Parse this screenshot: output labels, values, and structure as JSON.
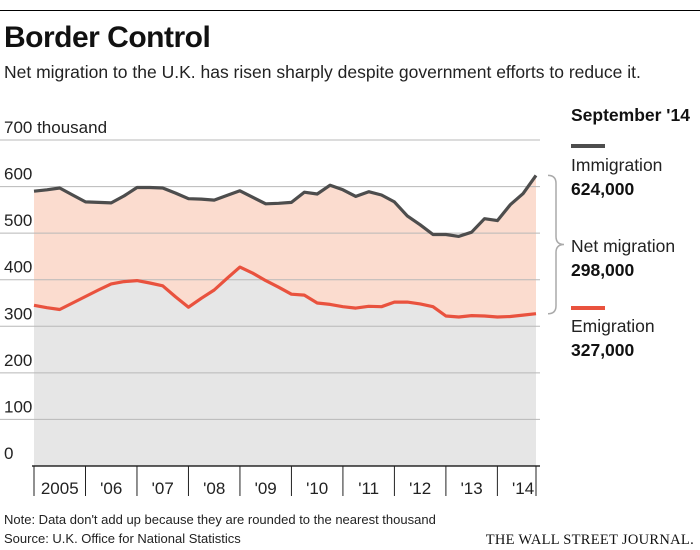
{
  "header": {
    "title": "Border Control",
    "subtitle": "Net migration to the U.K. has risen sharply despite government efforts to reduce it."
  },
  "legend": {
    "period": "September '14",
    "immigration_label": "Immigration",
    "immigration_value": "624,000",
    "net_label": "Net migration",
    "net_value": "298,000",
    "emigration_label": "Emigration",
    "emigration_value": "327,000"
  },
  "footer": {
    "note": "Note: Data don't add up because they are rounded to the nearest thousand",
    "source": "Source: U.K. Office for National Statistics",
    "publisher": "THE WALL STREET JOURNAL."
  },
  "colors": {
    "immigration": "#4d4d4d",
    "emigration": "#e9523e",
    "net_fill": "#fbdccf",
    "base_fill": "#e6e6e6",
    "grid": "#b8b8b8"
  },
  "chart_data": {
    "type": "line",
    "ylabel": "700 thousand",
    "ylim": [
      0,
      700
    ],
    "yticks": [
      0,
      100,
      200,
      300,
      400,
      500,
      600
    ],
    "ytick_labels": [
      "0",
      "100",
      "200",
      "300",
      "400",
      "500",
      "600"
    ],
    "year_labels": [
      "2005",
      "'06",
      "'07",
      "'08",
      "'09",
      "'10",
      "'11",
      "'12",
      "'13",
      "'14"
    ],
    "x": [
      2005.0,
      2005.25,
      2005.5,
      2005.75,
      2006.0,
      2006.25,
      2006.5,
      2006.75,
      2007.0,
      2007.25,
      2007.5,
      2007.75,
      2008.0,
      2008.25,
      2008.5,
      2008.75,
      2009.0,
      2009.25,
      2009.5,
      2009.75,
      2010.0,
      2010.25,
      2010.5,
      2010.75,
      2011.0,
      2011.25,
      2011.5,
      2011.75,
      2012.0,
      2012.25,
      2012.5,
      2012.75,
      2013.0,
      2013.25,
      2013.5,
      2013.75,
      2014.0,
      2014.25,
      2014.5,
      2014.75
    ],
    "series": [
      {
        "name": "Immigration",
        "values": [
          590,
          593,
          597,
          582,
          567,
          566,
          565,
          580,
          598,
          598,
          597,
          586,
          574,
          573,
          571,
          581,
          591,
          577,
          563,
          564,
          566,
          588,
          584,
          603,
          593,
          579,
          589,
          582,
          567,
          537,
          518,
          497,
          497,
          493,
          502,
          531,
          527,
          561,
          585,
          624
        ]
      },
      {
        "name": "Emigration",
        "values": [
          345,
          340,
          336,
          350,
          364,
          378,
          391,
          396,
          398,
          393,
          387,
          363,
          341,
          360,
          378,
          403,
          427,
          414,
          398,
          384,
          369,
          367,
          350,
          347,
          342,
          339,
          343,
          342,
          352,
          352,
          348,
          342,
          322,
          320,
          323,
          322,
          320,
          321,
          324,
          327
        ]
      }
    ],
    "annotation": {
      "label": "Net migration",
      "value": 298000
    }
  }
}
